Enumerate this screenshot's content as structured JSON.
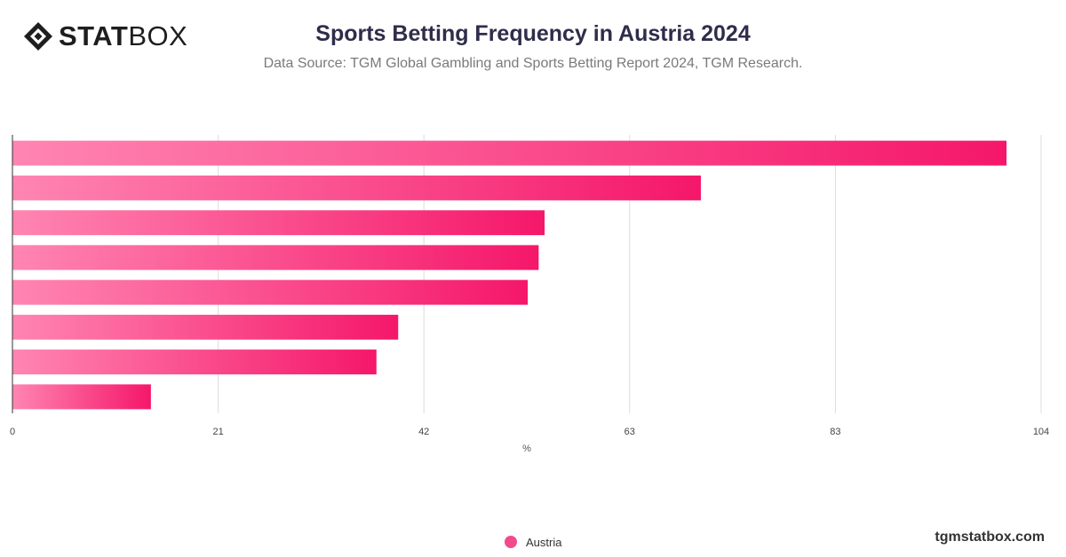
{
  "brand": {
    "logo_bold": "STAT",
    "logo_light": "BOX",
    "logo_icon": "statbox-diamond-icon",
    "footer": "tgmstatbox.com"
  },
  "colors": {
    "bar_start": "#ff85b2",
    "bar_end": "#f5176a",
    "grid": "#dddddd",
    "axis": "#333333",
    "legend_dot": "#f24b8b"
  },
  "chart_data": {
    "type": "bar",
    "orientation": "horizontal",
    "title": "Sports Betting Frequency in Austria 2024",
    "subtitle": "Data Source: TGM Global Gambling and Sports Betting Report 2024, TGM Research.",
    "xlabel": "%",
    "ylabel": "",
    "xlim": [
      0,
      104
    ],
    "x_ticks": [
      "0",
      "21",
      "42",
      "63",
      "83",
      "104"
    ],
    "grid": true,
    "legend_position": "bottom-center",
    "series": [
      {
        "name": "Austria",
        "values": [
          100.5,
          69.6,
          53.8,
          53.2,
          52.1,
          39.0,
          36.8,
          14.0
        ]
      }
    ]
  }
}
